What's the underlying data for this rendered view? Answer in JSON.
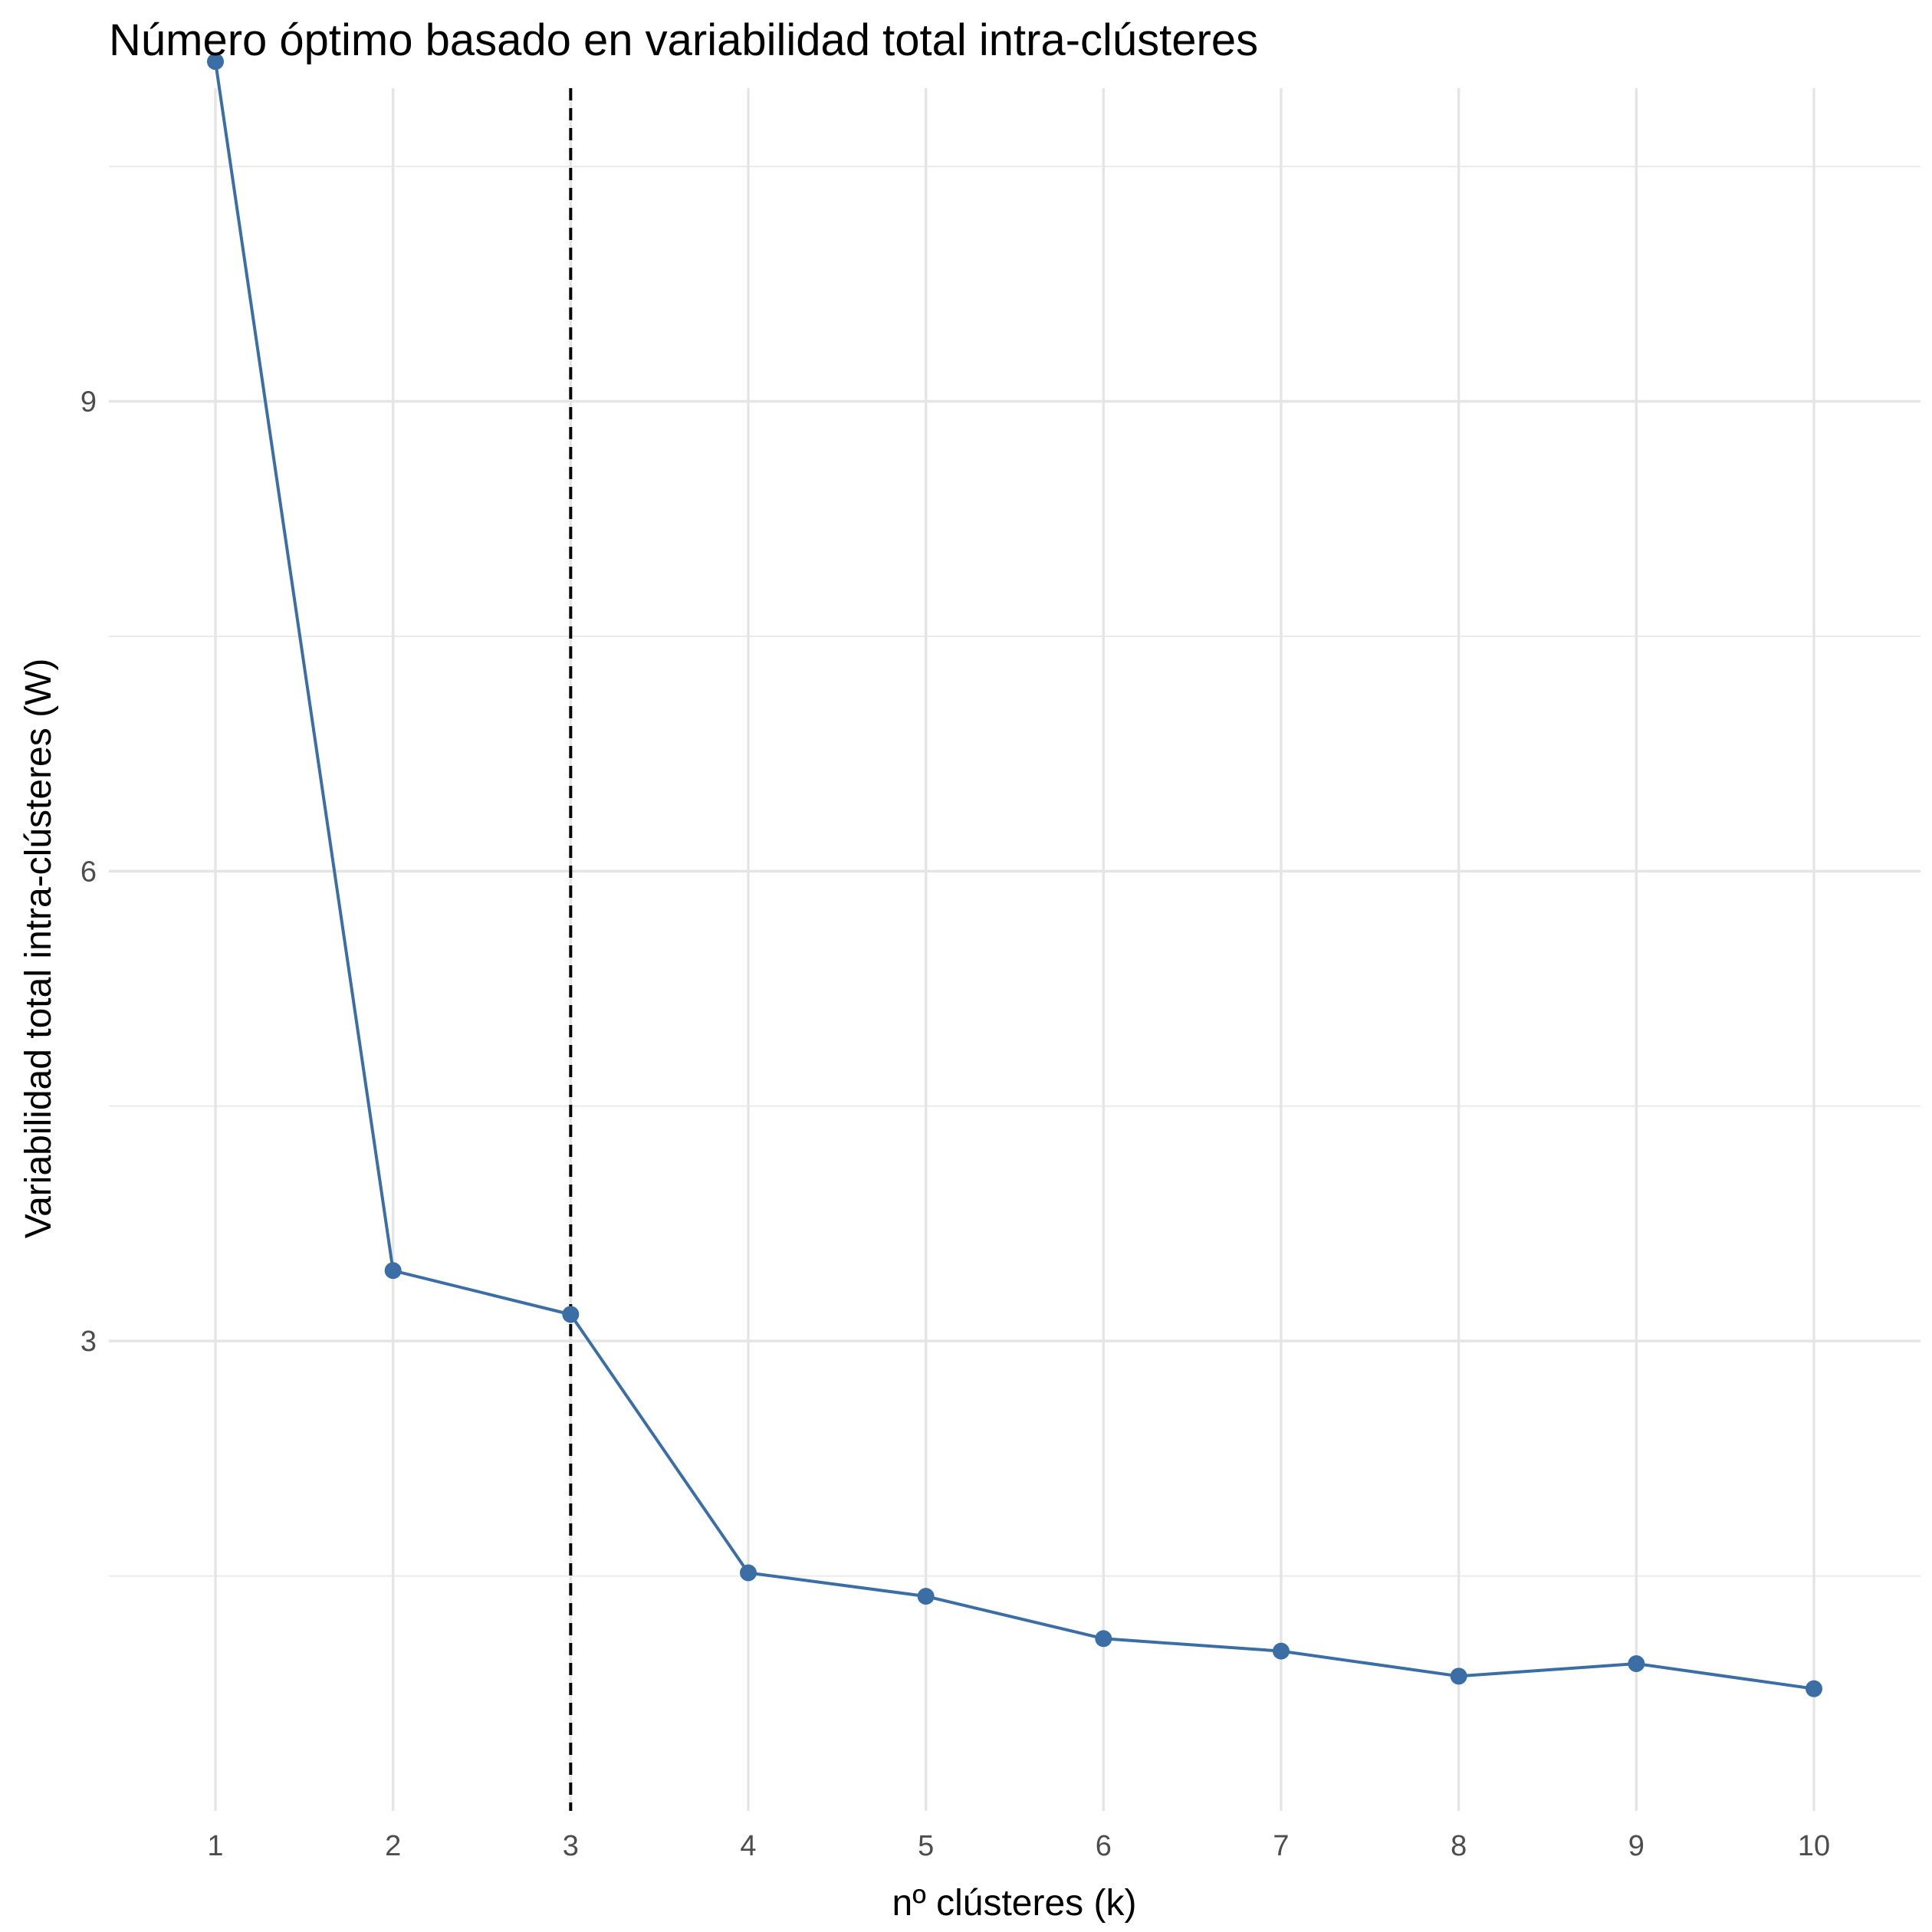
{
  "chart_data": {
    "type": "line",
    "title": "Número óptimo basado en variabilidad total intra-clústeres",
    "xlabel": "nº clústeres (k)",
    "ylabel": "Variabilidad total intra-clústeres (W)",
    "x": [
      1,
      2,
      3,
      4,
      5,
      6,
      7,
      8,
      9,
      10
    ],
    "xticks": [
      "1",
      "2",
      "3",
      "4",
      "5",
      "6",
      "7",
      "8",
      "9",
      "10"
    ],
    "yticks": [
      "3",
      "6",
      "9"
    ],
    "ytick_values": [
      3,
      6,
      9
    ],
    "xlim": [
      0.4,
      10.6
    ],
    "ylim": [
      0.0,
      11.0
    ],
    "grid": true,
    "series": [
      {
        "name": "W",
        "color": "#3a6ea5",
        "values": [
          11.17,
          3.45,
          3.17,
          1.52,
          1.37,
          1.1,
          1.02,
          0.86,
          0.94,
          0.78
        ]
      }
    ],
    "vline": {
      "x": 3,
      "style": "dashed",
      "color": "#000000"
    }
  }
}
